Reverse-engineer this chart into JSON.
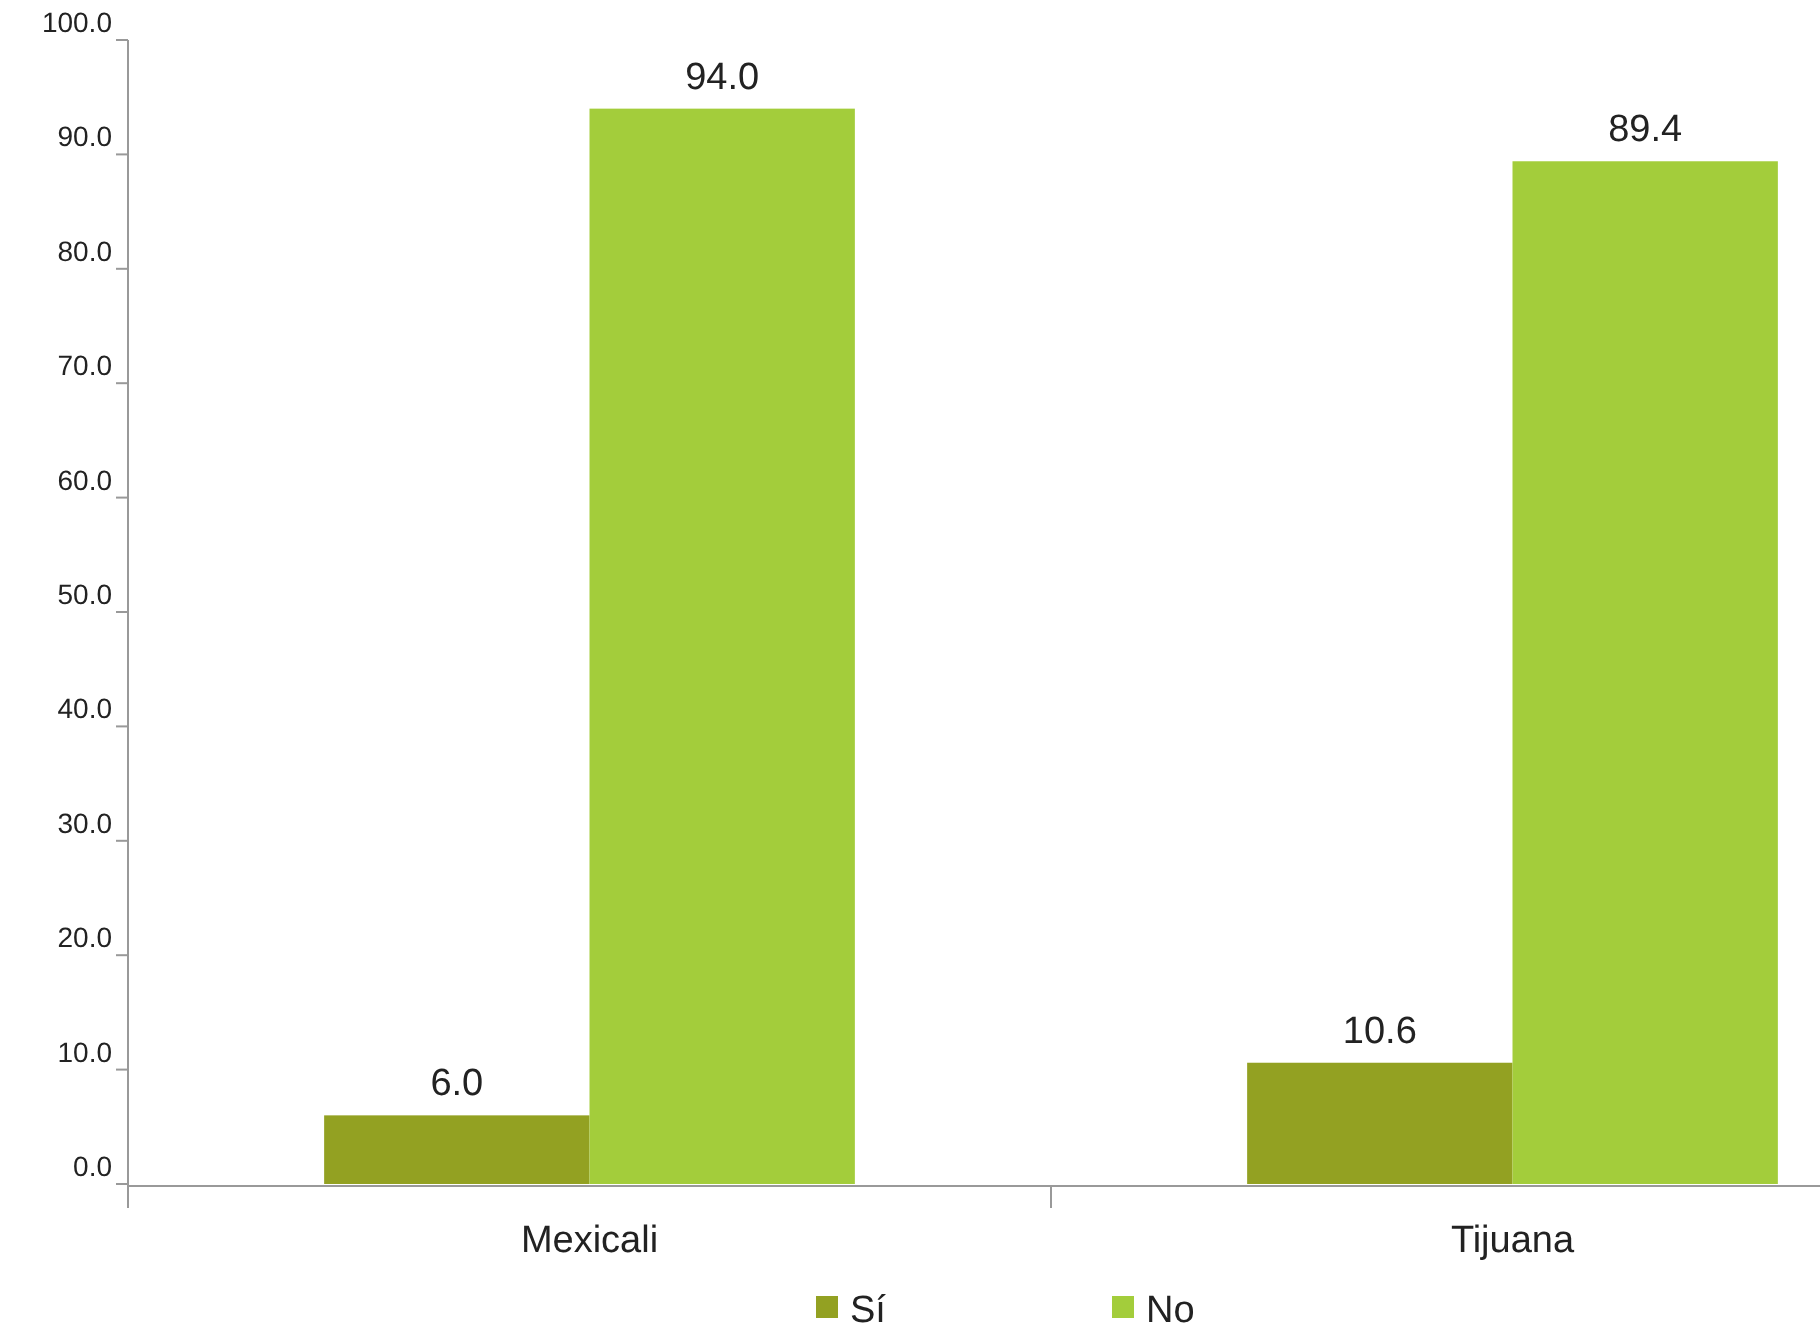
{
  "chart_data": {
    "type": "bar",
    "categories": [
      "Mexicali",
      "Tijuana"
    ],
    "series": [
      {
        "name": "Sí",
        "color": "#93a122",
        "values": [
          6.0,
          10.6
        ],
        "value_labels": [
          "6.0",
          "10.6"
        ]
      },
      {
        "name": "No",
        "color": "#a3cd3b",
        "values": [
          94.0,
          89.4
        ],
        "value_labels": [
          "94.0",
          "89.4"
        ]
      }
    ],
    "ylim": [
      0,
      100
    ],
    "yticks": [
      {
        "value": 0,
        "label": "0.0"
      },
      {
        "value": 10,
        "label": "10.0"
      },
      {
        "value": 20,
        "label": "20.0"
      },
      {
        "value": 30,
        "label": "30.0"
      },
      {
        "value": 40,
        "label": "40.0"
      },
      {
        "value": 50,
        "label": "50.0"
      },
      {
        "value": 60,
        "label": "60.0"
      },
      {
        "value": 70,
        "label": "70.0"
      },
      {
        "value": 80,
        "label": "80.0"
      },
      {
        "value": 90,
        "label": "90.0"
      },
      {
        "value": 100,
        "label": "100.0"
      }
    ],
    "grid": false,
    "legend": "bottom"
  }
}
